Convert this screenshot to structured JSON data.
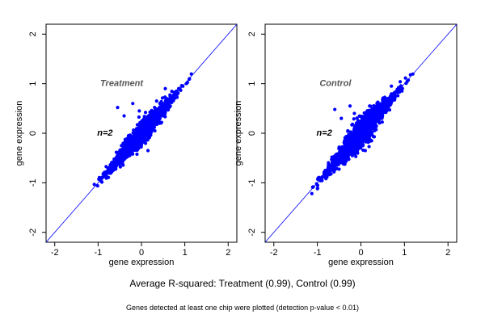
{
  "captions": {
    "main": "Average R-squared: Treatment (0.99), Control (0.99)",
    "footnote": "Genes detected at least one chip were plotted (detection p-value < 0.01)"
  },
  "colors": {
    "points": "#0000FF",
    "diagonal": "#0000FF",
    "frame": "#000000",
    "panel_title": "#555555"
  },
  "chart_data": [
    {
      "type": "scatter",
      "title": "Treatment",
      "annotation": "n=2",
      "xlabel": "gene expression",
      "ylabel": "gene expression",
      "xlim": [
        -2.2,
        2.2
      ],
      "ylim": [
        -2.2,
        2.2
      ],
      "xticks": [
        "-2",
        "-1",
        "0",
        "1",
        "2"
      ],
      "yticks": [
        "-2",
        "-1",
        "0",
        "1",
        "2"
      ],
      "reference_line": "y = x",
      "grid": false,
      "point_cloud": {
        "x_range": [
          -1.12,
          1.22
        ],
        "center": [
          0.0,
          0.0
        ],
        "band_width": 0.07,
        "outliers": [
          [
            -0.55,
            0.52
          ],
          [
            -0.4,
            0.35
          ],
          [
            -0.2,
            0.6
          ],
          [
            0.15,
            -0.35
          ],
          [
            -0.05,
            0.45
          ],
          [
            0.35,
            0.65
          ],
          [
            -0.3,
            -0.05
          ],
          [
            0.55,
            0.9
          ]
        ]
      }
    },
    {
      "type": "scatter",
      "title": "Control",
      "annotation": "n=2",
      "xlabel": "gene expression",
      "ylabel": "gene expression",
      "xlim": [
        -2.2,
        2.2
      ],
      "ylim": [
        -2.2,
        2.2
      ],
      "xticks": [
        "-2",
        "-1",
        "0",
        "1",
        "2"
      ],
      "yticks": [
        "-2",
        "-1",
        "0",
        "1",
        "2"
      ],
      "reference_line": "y = x",
      "grid": false,
      "point_cloud": {
        "x_range": [
          -1.12,
          1.22
        ],
        "center": [
          0.0,
          0.0
        ],
        "band_width": 0.09,
        "outliers": [
          [
            -0.6,
            0.48
          ],
          [
            -0.45,
            0.3
          ],
          [
            -0.25,
            0.55
          ],
          [
            0.7,
            0.95
          ],
          [
            0.2,
            0.55
          ],
          [
            -0.3,
            0.05
          ],
          [
            -0.15,
            0.4
          ],
          [
            0.1,
            -0.35
          ]
        ]
      }
    }
  ]
}
